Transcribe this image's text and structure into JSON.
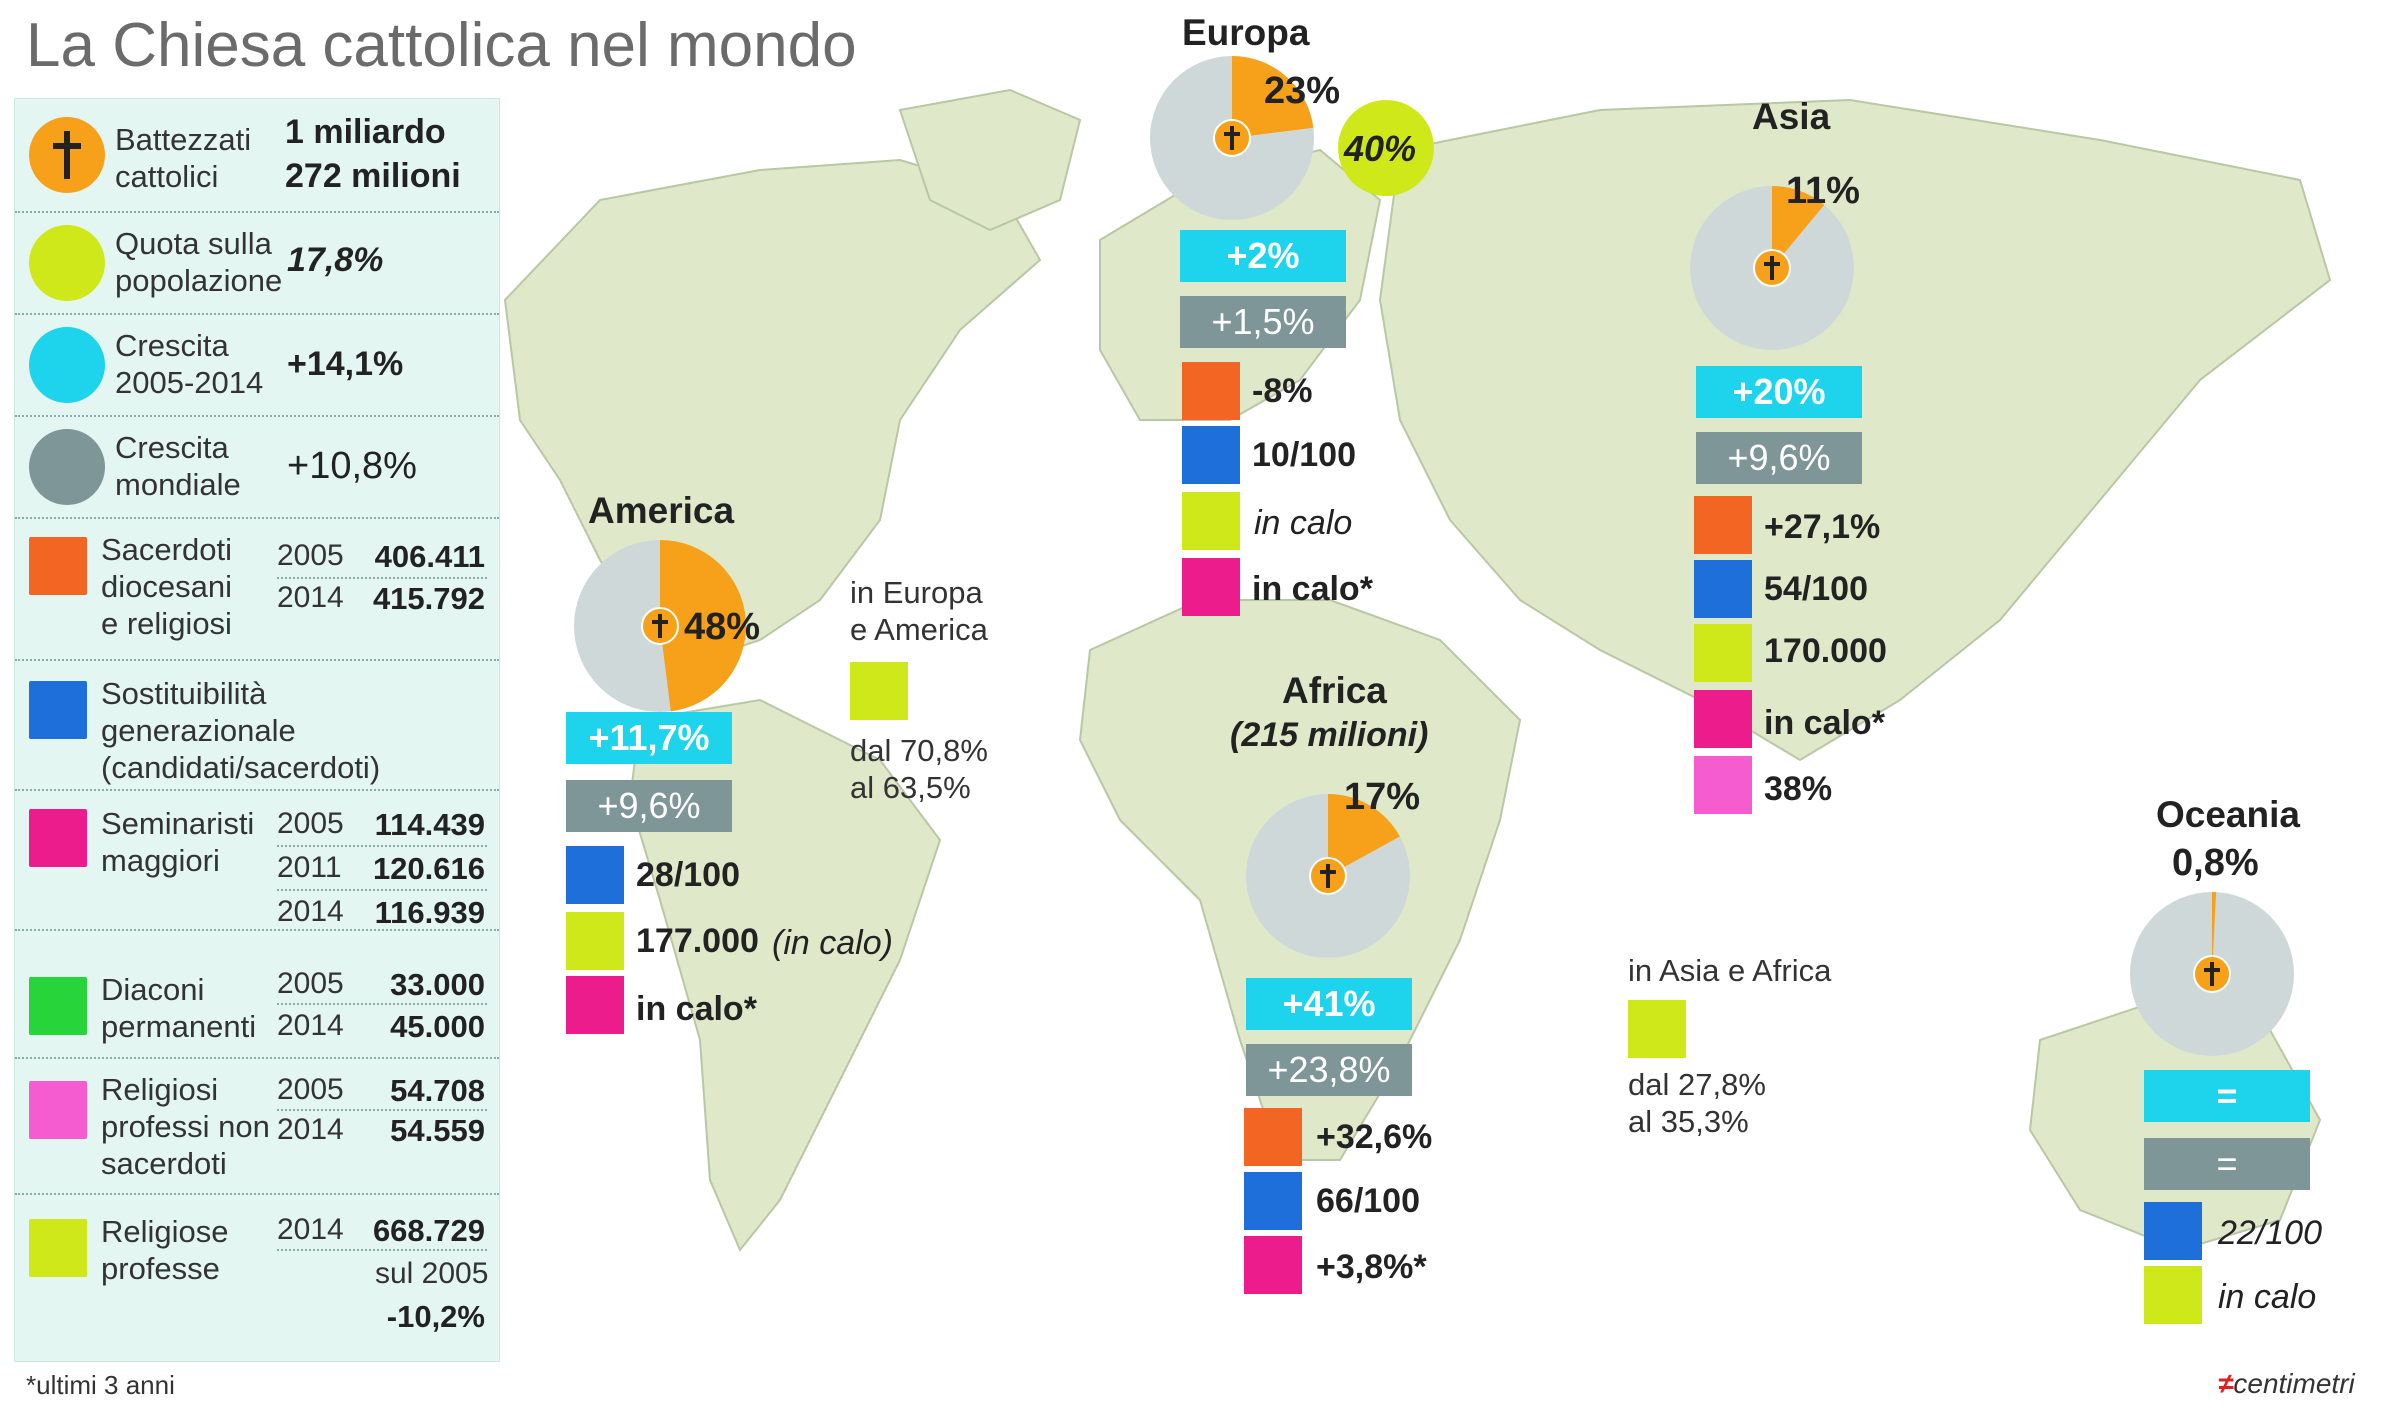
{
  "title": "La Chiesa cattolica nel mondo",
  "legend": {
    "baptized_label": "Battezzati\ncattolici",
    "baptized_value_1": "1 miliardo",
    "baptized_value_2": "272 milioni",
    "share_label": "Quota sulla\npopolazione",
    "share_value": "17,8%",
    "growth_label": "Crescita\n2005-2014",
    "growth_value": "+14,1%",
    "world_growth_label": "Crescita\nmondiale",
    "world_growth_value": "+10,8%",
    "priests_label": "Sacerdoti\ndiocesani\ne religiosi",
    "priests_y1": "2005",
    "priests_v1": "406.411",
    "priests_y2": "2014",
    "priests_v2": "415.792",
    "replacement_label": "Sostituibilità\ngenerazionale\n(candidati/sacerdoti)",
    "seminarians_label": "Seminaristi\nmaggiori",
    "sem_y1": "2005",
    "sem_v1": "114.439",
    "sem_y2": "2011",
    "sem_v2": "120.616",
    "sem_y3": "2014",
    "sem_v3": "116.939",
    "deacons_label": "Diaconi\npermanenti",
    "dea_y1": "2005",
    "dea_v1": "33.000",
    "dea_y2": "2014",
    "dea_v2": "45.000",
    "religious_label": "Religiosi\nprofessi non\nsacerdoti",
    "rel_y1": "2005",
    "rel_v1": "54.708",
    "rel_y2": "2014",
    "rel_v2": "54.559",
    "nuns_label": "Religiose\nprofesse",
    "nun_y1": "2014",
    "nun_v1": "668.729",
    "nun_sub": "sul 2005",
    "nun_change": "-10,2%"
  },
  "regions": {
    "america": {
      "name": "America",
      "pie": "48%",
      "growth": "+11,7%",
      "world": "+9,6%",
      "replacement": "28/100",
      "nuns": "177.000",
      "nuns_note": "(in calo)",
      "seminarians": "in calo*"
    },
    "europa": {
      "name": "Europa",
      "pie": "23%",
      "share": "40%",
      "growth": "+2%",
      "world": "+1,5%",
      "priests": "-8%",
      "replacement": "10/100",
      "nuns": "in calo",
      "seminarians": "in calo*"
    },
    "asia": {
      "name": "Asia",
      "pie": "11%",
      "growth": "+20%",
      "world": "+9,6%",
      "priests": "+27,1%",
      "replacement": "54/100",
      "nuns": "170.000",
      "seminarians": "in calo*",
      "religious": "38%"
    },
    "africa": {
      "name": "Africa",
      "sub": "(215 milioni)",
      "pie": "17%",
      "growth": "+41%",
      "world": "+23,8%",
      "priests": "+32,6%",
      "replacement": "66/100",
      "seminarians": "+3,8%*"
    },
    "oceania": {
      "name": "Oceania",
      "pie": "0,8%",
      "growth": "=",
      "world": "=",
      "replacement": "22/100",
      "nuns": "in calo"
    }
  },
  "notes": {
    "eu_am_title": "in Europa\ne America",
    "eu_am_text": "dal 70,8%\nal 63,5%",
    "as_af_title": "in Asia e Africa",
    "as_af_text": "dal 27,8%\nal 35,3%"
  },
  "footnote": "*ultimi 3 anni",
  "brand": "centimetri",
  "colors": {
    "cross": "#f7a11a",
    "share": "#cfe81a",
    "growth": "#1ed3ec",
    "world": "#7f9699",
    "priests": "#f26522",
    "replacement": "#1e6fd9",
    "seminarians": "#ec1c8c",
    "deacons": "#27d43a",
    "religious": "#f45ccf",
    "nuns": "#cfe81a",
    "pie_rest": "#cfd8d9",
    "map_land": "#dfe9c9"
  },
  "chart_data": [
    {
      "type": "pie",
      "title": "America",
      "series": [
        {
          "values": [
            48,
            52
          ]
        }
      ]
    },
    {
      "type": "pie",
      "title": "Europa",
      "series": [
        {
          "values": [
            23,
            77
          ]
        }
      ]
    },
    {
      "type": "pie",
      "title": "Asia",
      "series": [
        {
          "values": [
            11,
            89
          ]
        }
      ]
    },
    {
      "type": "pie",
      "title": "Africa",
      "series": [
        {
          "values": [
            17,
            83
          ]
        }
      ]
    },
    {
      "type": "pie",
      "title": "Oceania",
      "series": [
        {
          "values": [
            0.8,
            99.2
          ]
        }
      ]
    }
  ]
}
